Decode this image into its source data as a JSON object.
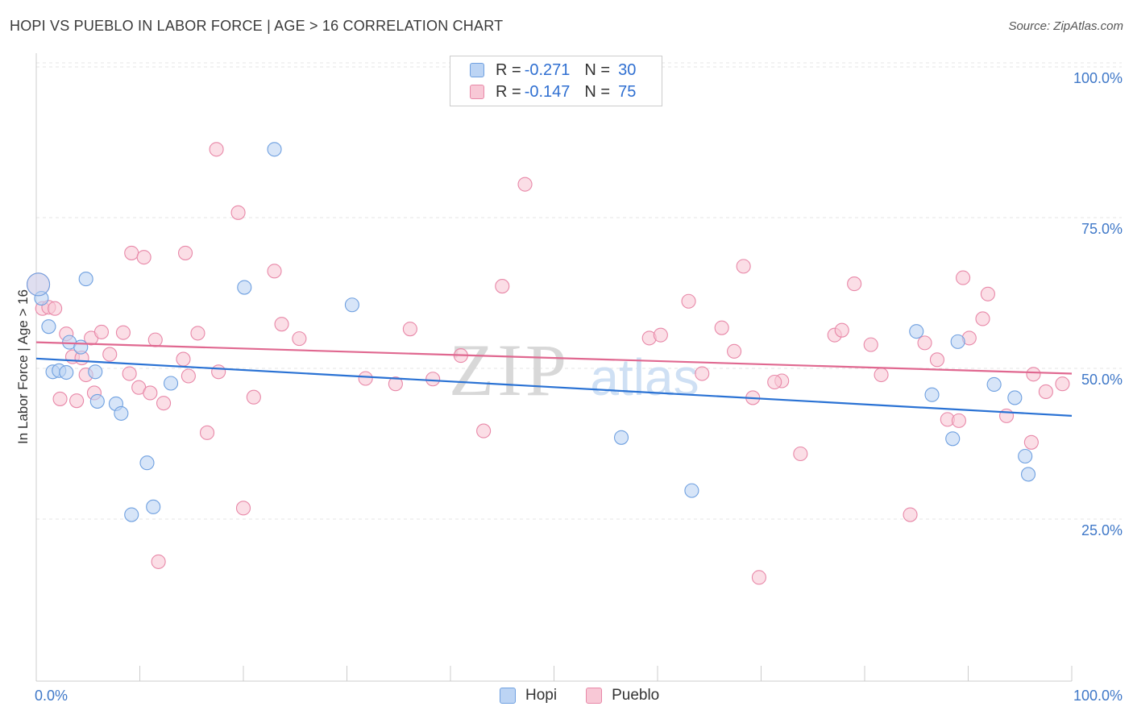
{
  "title": "HOPI VS PUEBLO IN LABOR FORCE | AGE > 16 CORRELATION CHART",
  "source": "Source: ZipAtlas.com",
  "watermark": {
    "zip": "ZIP",
    "atlas": "atlas"
  },
  "legend": {
    "hopi": {
      "r_label": "R = ",
      "r_value": "-0.271",
      "n_label": "N = ",
      "n_value": "30",
      "color": "#6fa0e0",
      "fill": "#bcd4f4"
    },
    "pueblo": {
      "r_label": "R = ",
      "r_value": "-0.147",
      "n_label": "N = ",
      "n_value": "75",
      "color": "#e888a8",
      "fill": "#f8c8d6"
    }
  },
  "chart_data": {
    "type": "scatter",
    "title": "HOPI VS PUEBLO IN LABOR FORCE | AGE > 16 CORRELATION CHART",
    "xlabel": "",
    "ylabel": "In Labor Force | Age > 16",
    "xlim": [
      0,
      100
    ],
    "ylim": [
      0,
      100
    ],
    "x_tick_labels": [
      "0.0%",
      "100.0%"
    ],
    "y_tick_labels": [
      "100.0%",
      "75.0%",
      "50.0%",
      "25.0%"
    ],
    "y_tick_values": [
      100,
      75,
      50,
      25
    ],
    "grid": true,
    "series": [
      {
        "name": "Hopi",
        "color": "#6fa0e0",
        "trend": {
          "y_at_0": 53.5,
          "y_at_100": 44.0,
          "color": "#2a72d4"
        },
        "points": [
          [
            0.5,
            63.5
          ],
          [
            1.2,
            58.8
          ],
          [
            1.6,
            51.3
          ],
          [
            2.2,
            51.5
          ],
          [
            2.9,
            51.2
          ],
          [
            3.2,
            56.2
          ],
          [
            4.3,
            55.4
          ],
          [
            4.8,
            66.7
          ],
          [
            5.7,
            51.3
          ],
          [
            5.9,
            46.4
          ],
          [
            7.7,
            46.0
          ],
          [
            8.2,
            44.4
          ],
          [
            9.2,
            27.6
          ],
          [
            10.7,
            36.2
          ],
          [
            11.3,
            28.9
          ],
          [
            13.0,
            49.4
          ],
          [
            20.1,
            65.3
          ],
          [
            23.0,
            88.2
          ],
          [
            30.5,
            62.4
          ],
          [
            56.5,
            40.4
          ],
          [
            63.3,
            31.6
          ],
          [
            85.0,
            58.0
          ],
          [
            86.5,
            47.5
          ],
          [
            88.5,
            40.2
          ],
          [
            89.0,
            56.3
          ],
          [
            92.5,
            49.2
          ],
          [
            94.5,
            47.0
          ],
          [
            95.5,
            37.3
          ],
          [
            95.8,
            34.3
          ],
          [
            0.2,
            65.8
          ]
        ]
      },
      {
        "name": "Pueblo",
        "color": "#e888a8",
        "trend": {
          "y_at_0": 56.2,
          "y_at_100": 51.0,
          "color": "#e06890"
        },
        "points": [
          [
            0.2,
            65.8
          ],
          [
            0.6,
            61.8
          ],
          [
            1.2,
            62.0
          ],
          [
            1.8,
            61.8
          ],
          [
            2.3,
            46.8
          ],
          [
            2.9,
            57.6
          ],
          [
            3.5,
            53.8
          ],
          [
            3.9,
            46.5
          ],
          [
            4.4,
            53.6
          ],
          [
            4.8,
            50.8
          ],
          [
            5.3,
            56.9
          ],
          [
            5.6,
            47.8
          ],
          [
            6.3,
            57.9
          ],
          [
            7.1,
            54.2
          ],
          [
            8.4,
            57.8
          ],
          [
            9.0,
            51.0
          ],
          [
            9.2,
            71.0
          ],
          [
            9.9,
            48.7
          ],
          [
            10.4,
            70.3
          ],
          [
            11.0,
            47.8
          ],
          [
            11.5,
            56.6
          ],
          [
            11.8,
            19.8
          ],
          [
            12.3,
            46.1
          ],
          [
            14.2,
            53.4
          ],
          [
            14.4,
            71.0
          ],
          [
            14.7,
            50.6
          ],
          [
            15.6,
            57.7
          ],
          [
            16.5,
            41.2
          ],
          [
            17.4,
            88.2
          ],
          [
            17.6,
            51.3
          ],
          [
            19.5,
            77.7
          ],
          [
            20.0,
            28.7
          ],
          [
            21.0,
            47.1
          ],
          [
            23.0,
            68.0
          ],
          [
            23.7,
            59.2
          ],
          [
            25.4,
            56.8
          ],
          [
            31.8,
            50.2
          ],
          [
            34.7,
            49.3
          ],
          [
            36.1,
            58.4
          ],
          [
            38.3,
            50.1
          ],
          [
            41.0,
            54.0
          ],
          [
            43.2,
            41.5
          ],
          [
            45.0,
            65.5
          ],
          [
            47.2,
            82.4
          ],
          [
            59.2,
            56.9
          ],
          [
            60.3,
            57.4
          ],
          [
            63.0,
            63.0
          ],
          [
            64.3,
            51.0
          ],
          [
            66.2,
            58.6
          ],
          [
            67.4,
            54.7
          ],
          [
            68.3,
            68.8
          ],
          [
            69.2,
            47.0
          ],
          [
            69.8,
            17.2
          ],
          [
            72.0,
            49.8
          ],
          [
            71.3,
            49.6
          ],
          [
            73.8,
            37.7
          ],
          [
            77.1,
            57.4
          ],
          [
            77.8,
            58.2
          ],
          [
            79.0,
            65.9
          ],
          [
            80.6,
            55.8
          ],
          [
            81.6,
            50.8
          ],
          [
            84.4,
            27.6
          ],
          [
            85.8,
            56.1
          ],
          [
            87.0,
            53.3
          ],
          [
            88.0,
            43.4
          ],
          [
            89.1,
            43.2
          ],
          [
            89.5,
            66.9
          ],
          [
            90.1,
            56.9
          ],
          [
            91.4,
            60.1
          ],
          [
            91.9,
            64.2
          ],
          [
            93.7,
            44.0
          ],
          [
            96.1,
            39.6
          ],
          [
            96.3,
            50.9
          ],
          [
            97.5,
            48.0
          ],
          [
            99.1,
            49.3
          ]
        ]
      }
    ]
  },
  "bottom_legend": [
    "Hopi",
    "Pueblo"
  ]
}
